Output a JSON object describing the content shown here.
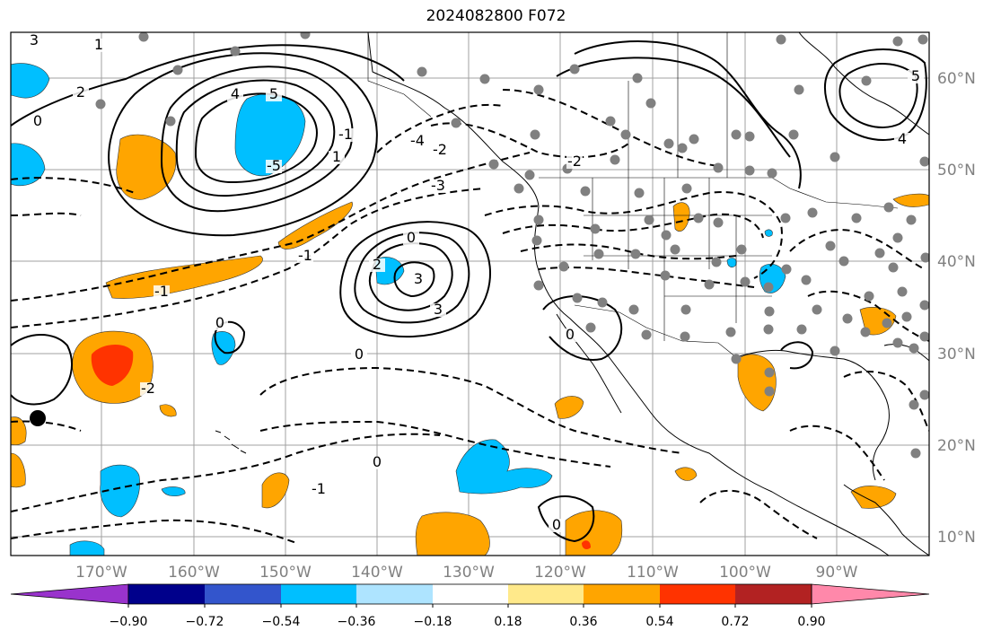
{
  "title": "2024082800 F072",
  "lon_labels": [
    "170°W",
    "160°W",
    "150°W",
    "140°W",
    "130°W",
    "120°W",
    "110°W",
    "100°W",
    "90°W"
  ],
  "lat_labels": [
    "60°N",
    "50°N",
    "40°N",
    "30°N",
    "20°N",
    "10°N"
  ],
  "colorbar": {
    "ticks": [
      "−0.90",
      "−0.72",
      "−0.54",
      "−0.36",
      "−0.18",
      "0.18",
      "0.36",
      "0.54",
      "0.72",
      "0.90"
    ],
    "colors": [
      "#9933cc",
      "#00008b",
      "#3355cc",
      "#00bfff",
      "#aee4ff",
      "#ffffff",
      "#ffe98a",
      "#ffa500",
      "#ff3300",
      "#b22222",
      "#ff88aa"
    ]
  },
  "contour_labels": [
    "3",
    "1",
    "4",
    "2",
    "0",
    "-1",
    "-2",
    "-3",
    "-4",
    "-5",
    "5",
    "1",
    "0",
    "3",
    "-1",
    "0",
    "0",
    "-2",
    "-1",
    "-1",
    "0",
    "0",
    "0",
    "3",
    "2",
    "-2",
    "5",
    "4"
  ],
  "colors": {
    "positive_anomaly": "#ffa500",
    "strong_positive": "#ff3300",
    "negative_anomaly": "#00bfff",
    "station_dot": "#808080"
  }
}
